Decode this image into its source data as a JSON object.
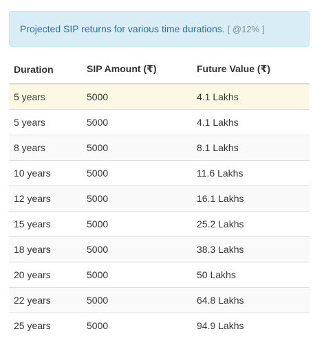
{
  "alert": {
    "text": "Projected SIP returns for various time durations.",
    "rate": "[ @12% ]"
  },
  "table": {
    "headers": [
      "Duration",
      "SIP Amount (₹)",
      "Future Value (₹)"
    ],
    "rows": [
      [
        "5 years",
        "5000",
        "4.1 Lakhs"
      ],
      [
        "5 years",
        "5000",
        "4.1 Lakhs"
      ],
      [
        "8 years",
        "5000",
        "8.1 Lakhs"
      ],
      [
        "10 years",
        "5000",
        "11.6 Lakhs"
      ],
      [
        "12 years",
        "5000",
        "16.1 Lakhs"
      ],
      [
        "15 years",
        "5000",
        "25.2 Lakhs"
      ],
      [
        "18 years",
        "5000",
        "38.3 Lakhs"
      ],
      [
        "20 years",
        "5000",
        "50 Lakhs"
      ],
      [
        "22 years",
        "5000",
        "64.8 Lakhs"
      ],
      [
        "25 years",
        "5000",
        "94.9 Lakhs"
      ]
    ]
  },
  "colors": {
    "alert_bg": "#d9edf7",
    "alert_text": "#31708f",
    "highlight_row": "#fcf8e3",
    "stripe_row": "#f9f9f9"
  }
}
